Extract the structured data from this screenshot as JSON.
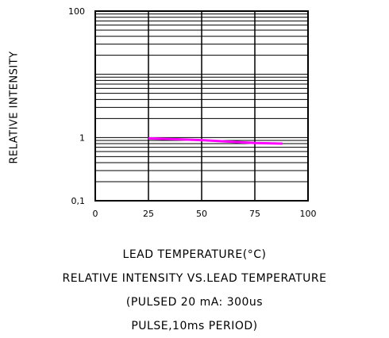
{
  "chart_data": {
    "type": "line",
    "title": "",
    "xlabel": "LEAD TEMPERATURE(°C)",
    "ylabel": "RELATIVE INTENSITY",
    "xlim": [
      0,
      100
    ],
    "ylim": [
      0.1,
      100
    ],
    "y_scale": "log",
    "grid": true,
    "x_ticks": [
      0,
      25,
      50,
      75,
      100
    ],
    "x_tick_labels": [
      "0",
      "25",
      "50",
      "75",
      "100"
    ],
    "y_tick_labels": [
      {
        "value": 100,
        "label": "100"
      },
      {
        "value": 1,
        "label": "1"
      },
      {
        "value": 0.1,
        "label": "0,1"
      }
    ],
    "series": [
      {
        "color": "#ff00ff",
        "x": [
          25,
          38,
          50,
          63,
          75,
          88
        ],
        "y": [
          0.97,
          0.94,
          0.91,
          0.86,
          0.82,
          0.8
        ]
      }
    ]
  },
  "captions": {
    "line1": "RELATIVE INTENSITY VS.LEAD TEMPERATURE",
    "line2": "(PULSED 20 mA: 300us",
    "line3": "PULSE,10ms PERIOD)"
  }
}
